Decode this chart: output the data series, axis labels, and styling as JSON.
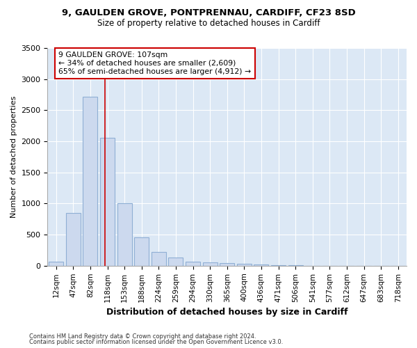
{
  "title1": "9, GAULDEN GROVE, PONTPRENNAU, CARDIFF, CF23 8SD",
  "title2": "Size of property relative to detached houses in Cardiff",
  "xlabel": "Distribution of detached houses by size in Cardiff",
  "ylabel": "Number of detached properties",
  "categories": [
    "12sqm",
    "47sqm",
    "82sqm",
    "118sqm",
    "153sqm",
    "188sqm",
    "224sqm",
    "259sqm",
    "294sqm",
    "330sqm",
    "365sqm",
    "400sqm",
    "436sqm",
    "471sqm",
    "506sqm",
    "541sqm",
    "577sqm",
    "612sqm",
    "647sqm",
    "683sqm",
    "718sqm"
  ],
  "values": [
    60,
    850,
    2720,
    2060,
    1000,
    455,
    220,
    135,
    60,
    50,
    40,
    30,
    20,
    10,
    5,
    3,
    2,
    1,
    0,
    0,
    0
  ],
  "bar_color": "#ccd9ee",
  "bar_edge_color": "#8fafd4",
  "vline_x": 2.85,
  "vline_color": "#cc0000",
  "annotation_text": "9 GAULDEN GROVE: 107sqm\n← 34% of detached houses are smaller (2,609)\n65% of semi-detached houses are larger (4,912) →",
  "annotation_box_edgecolor": "#cc0000",
  "ylim": [
    0,
    3500
  ],
  "yticks": [
    0,
    500,
    1000,
    1500,
    2000,
    2500,
    3000,
    3500
  ],
  "plot_bg_color": "#dce8f5",
  "fig_bg_color": "#ffffff",
  "grid_color": "#ffffff",
  "footer1": "Contains HM Land Registry data © Crown copyright and database right 2024.",
  "footer2": "Contains public sector information licensed under the Open Government Licence v3.0."
}
